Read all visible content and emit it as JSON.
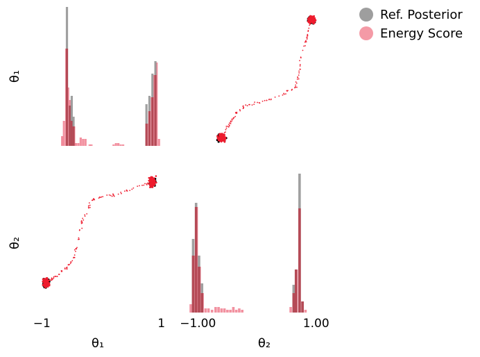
{
  "chart_data": {
    "type": "pairplot",
    "params": [
      "θ₁",
      "θ₂"
    ],
    "legend": {
      "placement": "top-right",
      "entries": [
        {
          "key": "ref",
          "label": "Ref. Posterior",
          "color": "#9e9e9e"
        },
        {
          "key": "es",
          "label": "Energy Score",
          "color": "#f49aa6"
        }
      ]
    },
    "colors": {
      "ref_hist": "#8f8f8f",
      "es_hist": "#ee6c80",
      "overlap_hist": "#b54a56",
      "ref_scatter": "#000000",
      "es_scatter": "#ee1c2e"
    },
    "x_ticks_theta1": [
      {
        "v": -1,
        "label": "−1"
      },
      {
        "v": 1,
        "label": "1"
      }
    ],
    "x_ticks_theta2": [
      {
        "v": -1,
        "label": "−1.00"
      },
      {
        "v": 1,
        "label": "1.00"
      }
    ],
    "axis_range": [
      -1.05,
      1.05
    ],
    "hist_theta1": {
      "ref": [
        [
          -0.58,
          1.0
        ],
        [
          -0.53,
          0.29
        ],
        [
          -0.5,
          0.36
        ],
        [
          -0.47,
          0.21
        ],
        [
          0.75,
          0.3
        ],
        [
          0.8,
          0.36
        ],
        [
          0.85,
          0.52
        ],
        [
          0.9,
          0.61
        ]
      ],
      "es": [
        [
          -0.66,
          0.07
        ],
        [
          -0.63,
          0.18
        ],
        [
          -0.59,
          0.7
        ],
        [
          -0.56,
          0.42
        ],
        [
          -0.53,
          0.33
        ],
        [
          -0.5,
          0.18
        ],
        [
          -0.46,
          0.14
        ],
        [
          -0.43,
          0.02
        ],
        [
          -0.39,
          0.02
        ],
        [
          -0.35,
          0.06
        ],
        [
          -0.31,
          0.05
        ],
        [
          -0.27,
          0.05
        ],
        [
          -0.2,
          0.01
        ],
        [
          -0.17,
          0.01
        ],
        [
          0.2,
          0.01
        ],
        [
          0.24,
          0.02
        ],
        [
          0.28,
          0.02
        ],
        [
          0.32,
          0.01
        ],
        [
          0.36,
          0.01
        ],
        [
          0.76,
          0.16
        ],
        [
          0.8,
          0.25
        ],
        [
          0.84,
          0.35
        ],
        [
          0.88,
          0.51
        ],
        [
          0.92,
          0.6
        ],
        [
          0.96,
          0.05
        ]
      ]
    },
    "hist_theta2": {
      "ref": [
        [
          -1.08,
          0.53
        ],
        [
          -1.03,
          0.79
        ],
        [
          -0.98,
          0.41
        ],
        [
          -0.93,
          0.21
        ],
        [
          0.62,
          0.2
        ],
        [
          0.66,
          0.31
        ],
        [
          0.72,
          1.0
        ],
        [
          0.77,
          0.08
        ]
      ],
      "es": [
        [
          -1.12,
          0.06
        ],
        [
          -1.07,
          0.41
        ],
        [
          -1.02,
          0.76
        ],
        [
          -0.97,
          0.33
        ],
        [
          -0.92,
          0.14
        ],
        [
          -0.87,
          0.03
        ],
        [
          -0.82,
          0.03
        ],
        [
          -0.76,
          0.02
        ],
        [
          -0.7,
          0.04
        ],
        [
          -0.65,
          0.04
        ],
        [
          -0.6,
          0.03
        ],
        [
          -0.55,
          0.03
        ],
        [
          -0.5,
          0.02
        ],
        [
          -0.45,
          0.02
        ],
        [
          -0.4,
          0.04
        ],
        [
          -0.35,
          0.02
        ],
        [
          -0.3,
          0.03
        ],
        [
          -0.25,
          0.02
        ],
        [
          0.57,
          0.04
        ],
        [
          0.62,
          0.14
        ],
        [
          0.67,
          0.31
        ],
        [
          0.72,
          0.75
        ],
        [
          0.77,
          0.08
        ],
        [
          0.82,
          0.02
        ]
      ]
    },
    "scatter_theta1_theta2": {
      "ref_clusters": [
        [
          -0.6,
          -0.93
        ],
        [
          0.92,
          0.85
        ]
      ],
      "es_path": [
        [
          -0.62,
          -0.97
        ],
        [
          -0.54,
          -0.82
        ],
        [
          -0.45,
          -0.7
        ],
        [
          -0.35,
          -0.56
        ],
        [
          -0.2,
          -0.45
        ],
        [
          0.1,
          -0.38
        ],
        [
          0.4,
          -0.3
        ],
        [
          0.65,
          -0.15
        ],
        [
          0.7,
          0.0
        ],
        [
          0.75,
          0.3
        ],
        [
          0.85,
          0.6
        ],
        [
          0.92,
          0.85
        ]
      ]
    }
  }
}
